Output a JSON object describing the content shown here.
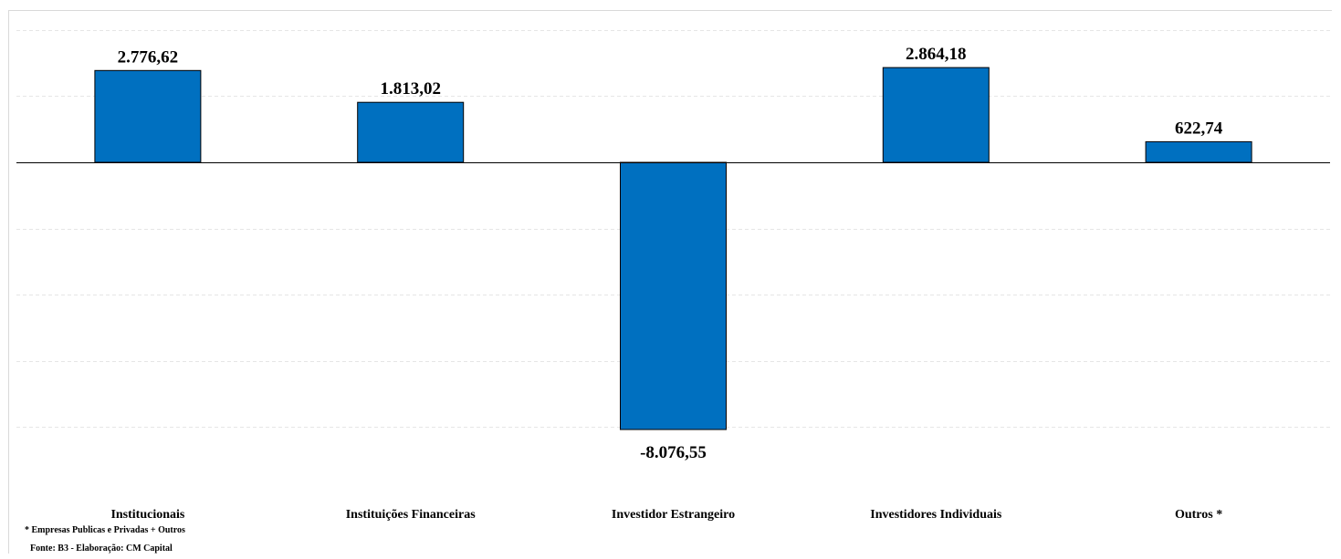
{
  "chart_data": {
    "type": "bar",
    "categories": [
      "Institucionais",
      "Instituições Financeiras",
      "Investidor Estrangeiro",
      "Investidores Individuais",
      "Outros *"
    ],
    "values": [
      2776.62,
      1813.02,
      -8076.55,
      2864.18,
      622.74
    ],
    "value_labels": [
      "2.776,62",
      "1.813,02",
      "-8.076,55",
      "2.864,18",
      "622,74"
    ],
    "ylim": [
      -8400,
      4000
    ],
    "grid": true,
    "bar_color": "#0070c0",
    "title": "",
    "xlabel": "",
    "ylabel": ""
  },
  "notes": {
    "footnote": "* Empresas Publicas e Privadas + Outros",
    "source": "Fonte: B3 - Elaboração: CM Capital"
  }
}
